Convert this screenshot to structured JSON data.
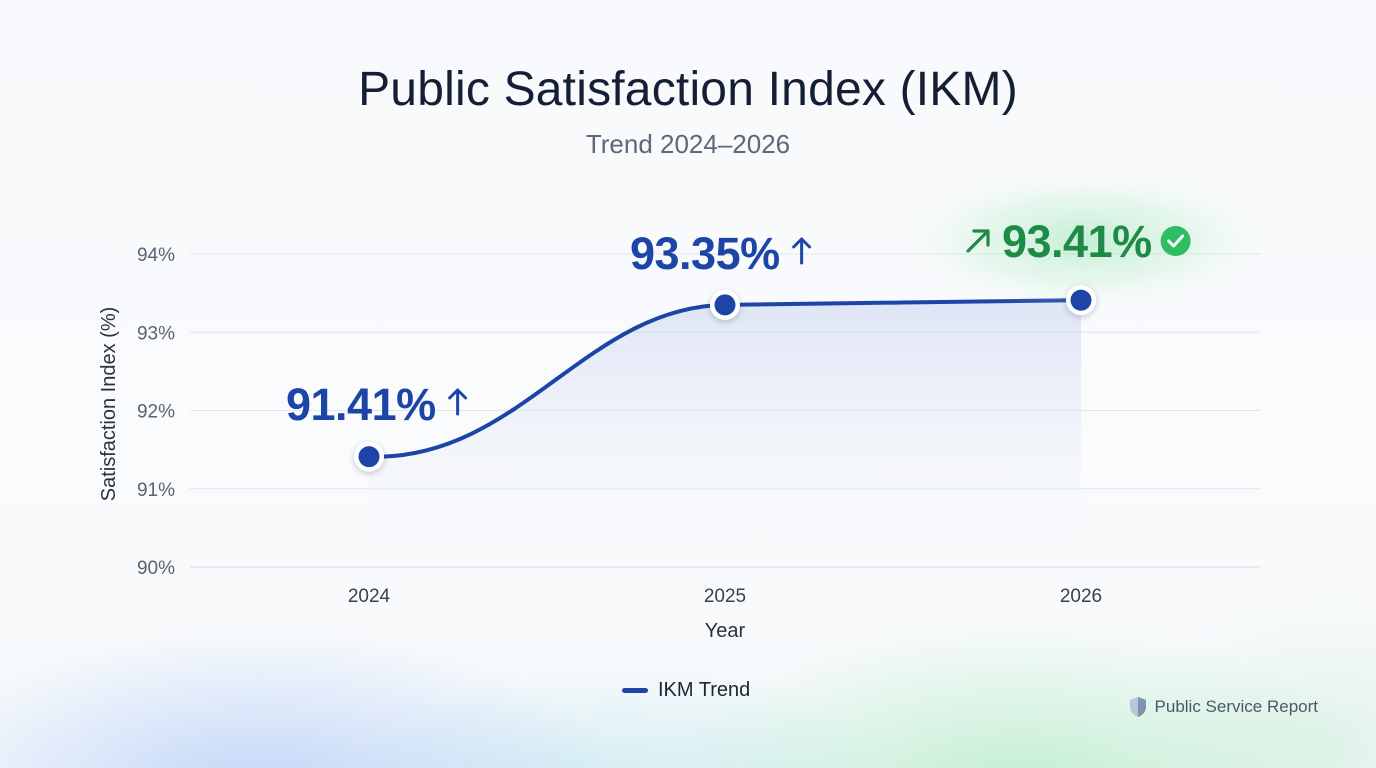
{
  "title": "Public Satisfaction Index (IKM)",
  "subtitle": "Trend 2024–2026",
  "footer": {
    "label": "Public Service Report",
    "icon": "shield-logo-icon"
  },
  "legend": {
    "label": "IKM Trend"
  },
  "colors": {
    "line": "#1d45a8",
    "accent_green": "#1e8a45",
    "check_green": "#2fbd63",
    "grid": "#e1e5ec",
    "tick": "#5a6372"
  },
  "chart_data": {
    "type": "line",
    "title": "Public Satisfaction Index (IKM)",
    "subtitle": "Trend 2024–2026",
    "xlabel": "Year",
    "ylabel": "Satisfaction Index (%)",
    "ylim": [
      90,
      94
    ],
    "yticks": [
      "90%",
      "91%",
      "92%",
      "93%",
      "94%"
    ],
    "categories": [
      "2024",
      "2025",
      "2026"
    ],
    "series": [
      {
        "name": "IKM Trend",
        "values": [
          91.41,
          93.35,
          93.41
        ]
      }
    ],
    "labels": [
      {
        "text": "91.41%",
        "icon": "arrow-up-icon"
      },
      {
        "text": "93.35%",
        "icon": "arrow-up-icon"
      },
      {
        "text": "93.41%",
        "icon": "arrow-up-right-icon",
        "badge": "check-circle-icon"
      }
    ],
    "grid": true,
    "legend_position": "bottom-center"
  }
}
